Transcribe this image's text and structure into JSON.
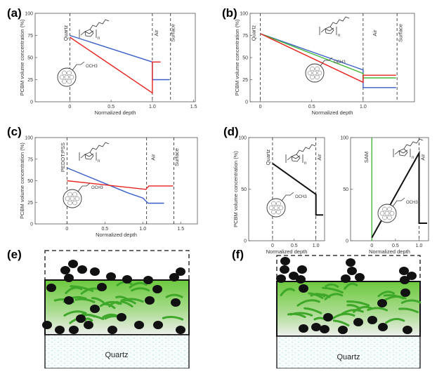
{
  "figure": {
    "panel_labels": [
      "(a)",
      "(b)",
      "(c)",
      "(d)",
      "(e)",
      "(f)"
    ],
    "molecule_labels": {
      "n": "n",
      "och3": "OCH3"
    },
    "substrate_label": "Quartz"
  },
  "colors": {
    "blue": "#3a5fc8",
    "red": "#e8231f",
    "green": "#44b83a",
    "black": "#111111",
    "film_green": "#7ed04e"
  },
  "chart_data": [
    {
      "panel": "(a)",
      "type": "line",
      "xlabel": "Normalized depth",
      "ylabel": "PCBM volume concentration (%)",
      "xlim": [
        -0.42,
        1.52
      ],
      "ylim": [
        0,
        100
      ],
      "xticks": [
        "0",
        "0.5",
        "1.0",
        "1.5"
      ],
      "yticks": [
        "0",
        "25",
        "50",
        "75",
        "100"
      ],
      "regions": [
        {
          "label": "Quartz",
          "x": -0.03
        },
        {
          "label": "Air",
          "x": 1.07
        },
        {
          "label": "Surface",
          "x": 1.27
        }
      ],
      "dashed_x": [
        0,
        1.0,
        1.22
      ],
      "series": [
        {
          "color": "blue",
          "x": [
            0,
            1.0,
            1.0,
            1.21
          ],
          "y": [
            75,
            45,
            25,
            25
          ]
        },
        {
          "color": "red",
          "x": [
            0,
            1.0,
            1.0,
            1.1
          ],
          "y": [
            73,
            10,
            45,
            45
          ]
        }
      ]
    },
    {
      "panel": "(b)",
      "type": "line",
      "xlabel": "Normalized depth",
      "ylabel": "PCBM volume concentration (%)",
      "xlim": [
        -0.1,
        1.5
      ],
      "ylim": [
        0,
        100
      ],
      "xticks": [
        "0",
        "0.5",
        "1.0"
      ],
      "yticks": [
        "0",
        "25",
        "50",
        "75",
        "100"
      ],
      "regions": [
        {
          "label": "Quartz",
          "x": -0.05
        },
        {
          "label": "Air",
          "x": 1.13
        },
        {
          "label": "Surface",
          "x": 1.38
        }
      ],
      "dashed_x": [
        0,
        1.0,
        1.33
      ],
      "series": [
        {
          "color": "blue",
          "x": [
            0,
            1.0,
            1.0,
            1.32
          ],
          "y": [
            77,
            36,
            16,
            16
          ]
        },
        {
          "color": "green",
          "x": [
            0,
            1.0,
            1.0,
            1.32
          ],
          "y": [
            77,
            32,
            27,
            27
          ]
        },
        {
          "color": "red",
          "x": [
            0,
            1.0,
            1.0,
            1.32
          ],
          "y": [
            77,
            22,
            30,
            30
          ]
        }
      ]
    },
    {
      "panel": "(c)",
      "type": "line",
      "xlabel": "Normalized depth",
      "ylabel": "PCBM volume concentration (%)",
      "xlim": [
        -0.42,
        1.72
      ],
      "ylim": [
        0,
        100
      ],
      "xticks": [
        "0",
        "0.5",
        "1.0",
        "1.5"
      ],
      "yticks": [
        "0",
        "25",
        "50",
        "75",
        "100"
      ],
      "regions": [
        {
          "label": "PEDOT:PSS",
          "x": -0.03
        },
        {
          "label": "Air",
          "x": 1.16
        },
        {
          "label": "Surface",
          "x": 1.47
        }
      ],
      "dashed_x": [
        0,
        1.05,
        1.41
      ],
      "series": [
        {
          "color": "blue",
          "x": [
            0,
            0.8,
            1.0,
            1.07,
            1.07,
            1.28
          ],
          "y": [
            65,
            36,
            30,
            24,
            24,
            24
          ]
        },
        {
          "color": "red",
          "x": [
            0,
            1.04,
            1.08,
            1.4
          ],
          "y": [
            50,
            40,
            44,
            44
          ]
        }
      ]
    },
    {
      "panel": "(d)",
      "type": "line",
      "xlabel": "Normalized depth",
      "ylabel": "PCBM volume concentration (%)",
      "xlim": [
        -0.55,
        1.2
      ],
      "ylim": [
        0,
        100
      ],
      "xticks": [
        "0",
        "0.5",
        "1.0"
      ],
      "yticks": [
        "0",
        "50",
        "100"
      ],
      "regions": [
        {
          "label": "Quartz",
          "x": -0.06
        },
        {
          "label": "Air",
          "x": 1.12
        }
      ],
      "dashed_x": [
        0,
        1.0
      ],
      "series": [
        {
          "color": "black",
          "x": [
            0,
            1.0,
            1.0,
            1.17
          ],
          "y": [
            75,
            45,
            25,
            25
          ]
        }
      ]
    },
    {
      "panel": "(d-right)",
      "type": "line",
      "xlabel": "Normalized depth",
      "ylabel": "",
      "xlim": [
        -0.45,
        1.2
      ],
      "ylim": [
        0,
        100
      ],
      "xticks": [
        "0",
        "0.5",
        "1.0"
      ],
      "yticks": [
        "0",
        "50",
        "100"
      ],
      "regions": [
        {
          "label": "SAM",
          "x": -0.08
        },
        {
          "label": "Air",
          "x": 1.12
        }
      ],
      "dashed_x": [
        1.0
      ],
      "series": [
        {
          "color": "green",
          "x": [
            0,
            0
          ],
          "y": [
            0,
            100
          ]
        },
        {
          "color": "black",
          "x": [
            0,
            1.0,
            1.0,
            1.17
          ],
          "y": [
            3,
            85,
            17,
            17
          ]
        }
      ]
    }
  ]
}
